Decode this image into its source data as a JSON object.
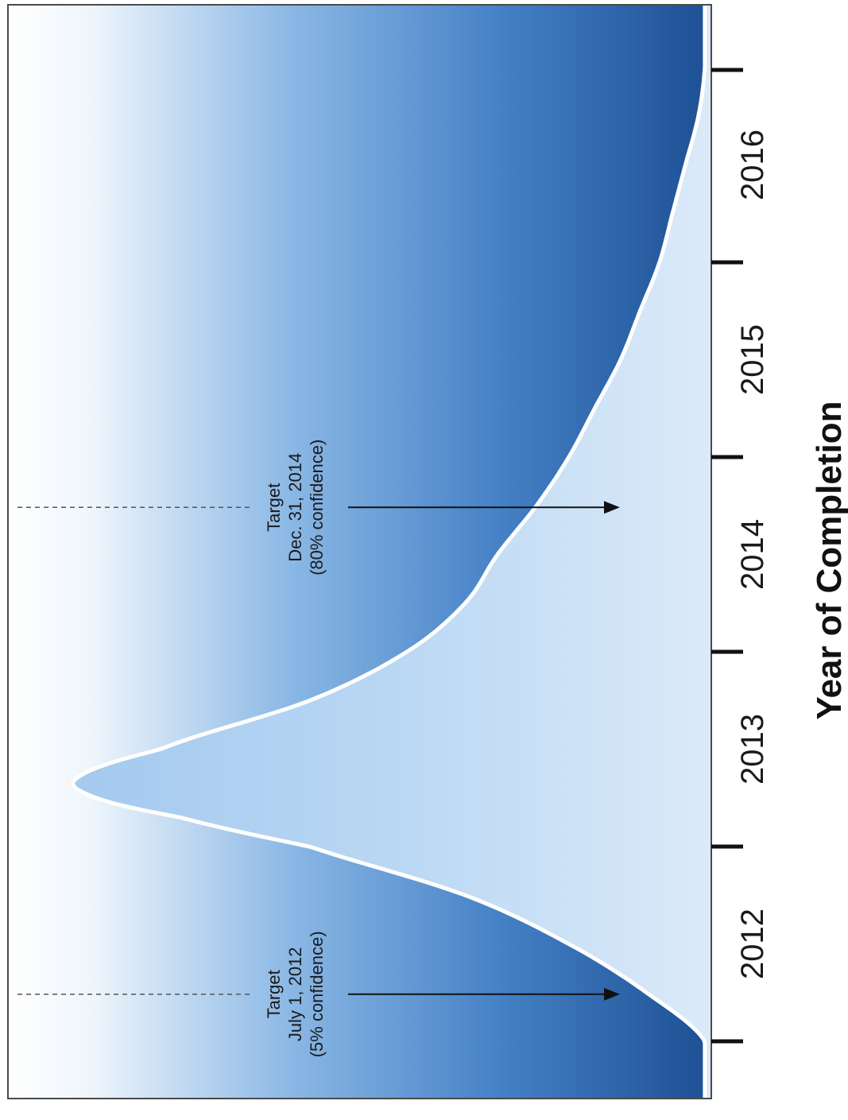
{
  "chart_data": {
    "type": "area",
    "xlabel": "Year of Completion",
    "ylabel": "",
    "title": "",
    "x_ticks": [
      "2012",
      "2013",
      "2014",
      "2015",
      "2016"
    ],
    "xlim": [
      2011.75,
      2016.75
    ],
    "ylim": [
      0,
      1
    ],
    "orientation": "rotated 90 degrees clockwise",
    "series": [
      {
        "x": [
          2011.75,
          2012.0,
          2012.25,
          2012.5,
          2012.75,
          2012.9,
          2013.0,
          2013.1,
          2013.25,
          2013.5,
          2013.75,
          2014.0,
          2014.25,
          2014.5,
          2014.75,
          2015.0,
          2015.25,
          2015.5,
          2015.75,
          2016.0,
          2016.25,
          2016.5,
          2016.75
        ],
        "values": [
          0.01,
          0.1,
          0.22,
          0.38,
          0.62,
          0.82,
          0.95,
          0.98,
          0.85,
          0.62,
          0.47,
          0.38,
          0.33,
          0.27,
          0.22,
          0.18,
          0.14,
          0.11,
          0.08,
          0.06,
          0.04,
          0.02,
          0.01
        ]
      }
    ],
    "annotations": [
      {
        "x": 2012.0,
        "lines": [
          "Target",
          "July 1, 2012",
          "(5% confidence)"
        ]
      },
      {
        "x": 2014.5,
        "lines": [
          "Target",
          "Dec. 31, 2014",
          "(80% confidence)"
        ]
      }
    ],
    "colors": {
      "curve_fill_light": "#d9e9f8",
      "curve_fill_mid": "#9cc4ec",
      "background_dark": "#1d4f93",
      "background_mid": "#5f97d4",
      "background_light": "#ffffff",
      "curve_stroke": "#ffffff",
      "tick": "#111111"
    }
  }
}
